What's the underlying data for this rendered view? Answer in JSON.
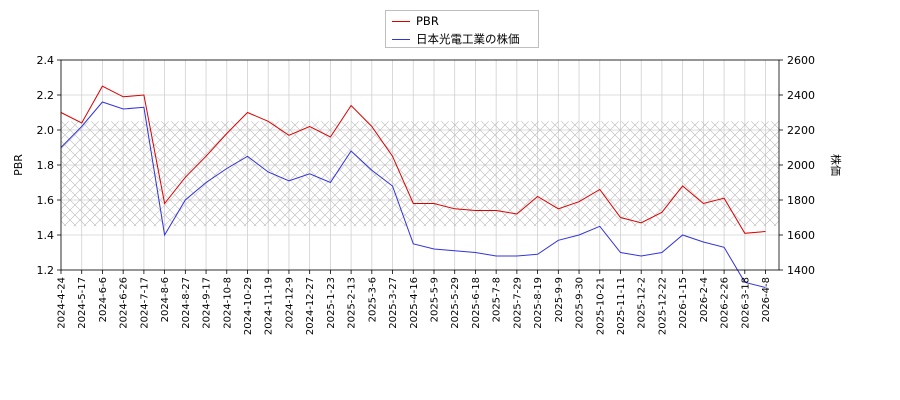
{
  "chart_data": {
    "type": "line",
    "title": "",
    "ylabel_left": "PBR",
    "ylabel_right": "株価",
    "ylim_left": [
      1.2,
      2.4
    ],
    "ylim_right": [
      1400,
      2600
    ],
    "yticks_left": [
      "1.2",
      "1.4",
      "1.6",
      "1.8",
      "2.0",
      "2.2",
      "2.4"
    ],
    "yticks_right": [
      "1400",
      "1600",
      "1800",
      "2000",
      "2200",
      "2400",
      "2600"
    ],
    "grid": true,
    "legend_position": "top-center",
    "hatched_band_left": [
      1.45,
      2.05
    ],
    "x_dates": [
      "2024-4-24",
      "2024-5-17",
      "2024-6-6",
      "2024-6-26",
      "2024-7-17",
      "2024-8-6",
      "2024-8-27",
      "2024-9-17",
      "2024-10-8",
      "2024-10-29",
      "2024-11-19",
      "2024-12-9",
      "2024-12-27",
      "2025-1-23",
      "2025-2-13",
      "2025-3-6",
      "2025-3-27",
      "2025-4-16",
      "2025-5-9",
      "2025-5-29",
      "2025-6-18",
      "2025-7-8",
      "2025-7-29",
      "2025-8-19",
      "2025-9-9",
      "2025-9-30",
      "2025-10-21",
      "2025-11-11",
      "2025-12-2",
      "2025-12-22",
      "2026-1-15",
      "2026-2-4",
      "2026-2-26",
      "2026-3-18",
      "2026-4-8"
    ],
    "series": [
      {
        "name": "PBR",
        "axis": "left",
        "color": "#dd0000",
        "values": [
          2.1,
          2.04,
          2.25,
          2.19,
          2.2,
          1.58,
          1.73,
          1.85,
          1.98,
          2.1,
          2.05,
          1.97,
          2.02,
          1.96,
          2.14,
          2.02,
          1.85,
          1.58,
          1.58,
          1.55,
          1.54,
          1.54,
          1.52,
          1.62,
          1.55,
          1.59,
          1.66,
          1.5,
          1.47,
          1.53,
          1.68,
          1.58,
          1.61,
          1.41,
          1.42
        ]
      },
      {
        "name": "日本光電工業の株価",
        "axis": "right",
        "color": "#3333dd",
        "values": [
          2100,
          2220,
          2360,
          2320,
          2330,
          1600,
          1800,
          1900,
          1980,
          2050,
          1960,
          1910,
          1950,
          1900,
          2080,
          1970,
          1880,
          1550,
          1520,
          1510,
          1500,
          1480,
          1480,
          1490,
          1570,
          1600,
          1650,
          1500,
          1480,
          1500,
          1600,
          1560,
          1530,
          1330,
          1300
        ]
      }
    ]
  }
}
